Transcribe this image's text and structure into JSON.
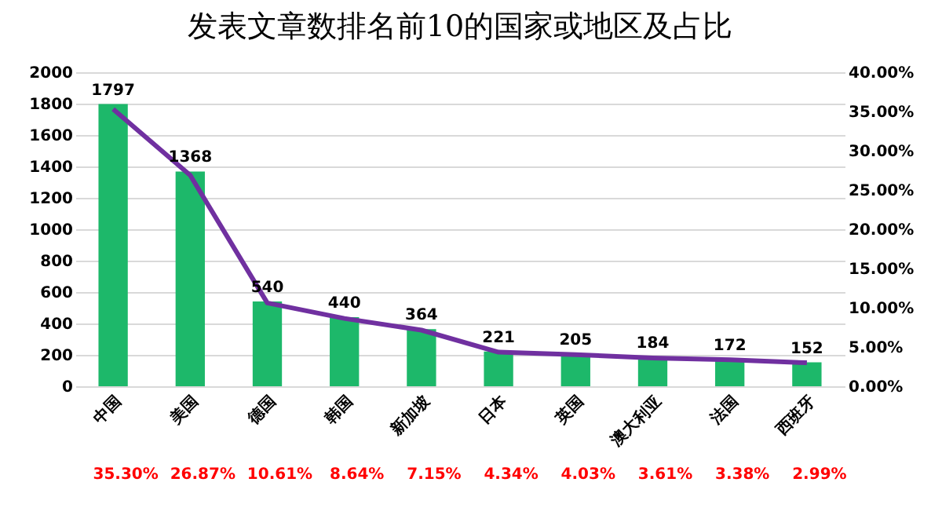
{
  "chart_data": {
    "type": "bar",
    "title": "发表文章数排名前10的国家或地区及占比",
    "categories": [
      "中国",
      "美国",
      "德国",
      "韩国",
      "新加坡",
      "日本",
      "英国",
      "澳大利亚",
      "法国",
      "西班牙"
    ],
    "series": [
      {
        "color": "#1db86a",
        "values": [
          1797,
          1368,
          540,
          440,
          364,
          221,
          205,
          184,
          172,
          152
        ],
        "value_labels": [
          "1797",
          "1368",
          "540",
          "440",
          "364",
          "221",
          "205",
          "184",
          "172",
          "152"
        ]
      },
      {
        "type": "line",
        "axis": "y2",
        "color": "#7030a0",
        "values": [
          35.3,
          26.87,
          10.61,
          8.64,
          7.15,
          4.34,
          4.03,
          3.61,
          3.38,
          2.99
        ],
        "value_labels": [
          "35.30%",
          "26.87%",
          "10.61%",
          "8.64%",
          "7.15%",
          "4.34%",
          "4.03%",
          "3.61%",
          "3.38%",
          "2.99%"
        ]
      }
    ],
    "ylim": [
      0,
      2000
    ],
    "yticks": [
      0,
      200,
      400,
      600,
      800,
      1000,
      1200,
      1400,
      1600,
      1800,
      2000
    ],
    "y2lim": [
      0,
      40
    ],
    "y2ticks": [
      {
        "value": 0,
        "label": "0.00%"
      },
      {
        "value": 5,
        "label": "5.00%"
      },
      {
        "value": 10,
        "label": "10.00%"
      },
      {
        "value": 15,
        "label": "15.00%"
      },
      {
        "value": 20,
        "label": "20.00%"
      },
      {
        "value": 25,
        "label": "25.00%"
      },
      {
        "value": 30,
        "label": "30.00%"
      },
      {
        "value": 35,
        "label": "35.00%"
      },
      {
        "value": 40,
        "label": "40.00%"
      }
    ],
    "grid": "y",
    "marker": "none"
  }
}
